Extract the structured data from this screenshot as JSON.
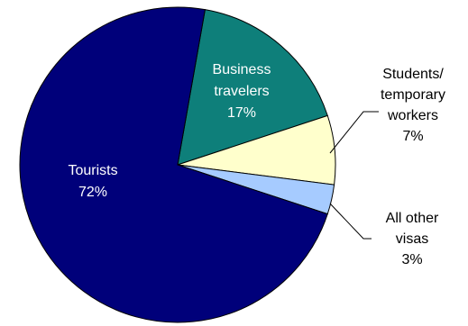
{
  "chart_data": {
    "type": "pie",
    "title": "",
    "slices": [
      {
        "label_lines": [
          "Business",
          "travelers"
        ],
        "value_label": "17%",
        "value": 17,
        "color": "#0e7f7a"
      },
      {
        "label_lines": [
          "Students/",
          "temporary",
          "workers"
        ],
        "value_label": "7%",
        "value": 7,
        "color": "#ffffcc"
      },
      {
        "label_lines": [
          "All other",
          "visas"
        ],
        "value_label": "3%",
        "value": 3,
        "color": "#a6cbff"
      },
      {
        "label_lines": [
          "Tourists"
        ],
        "value_label": "72%",
        "value": 72,
        "color": "#00007a"
      }
    ],
    "label_placement": [
      "inside",
      "outside",
      "outside",
      "inside"
    ],
    "inside_text_color": "#ffffff",
    "outside_text_color": "#000000",
    "edge_color": "#000000"
  }
}
